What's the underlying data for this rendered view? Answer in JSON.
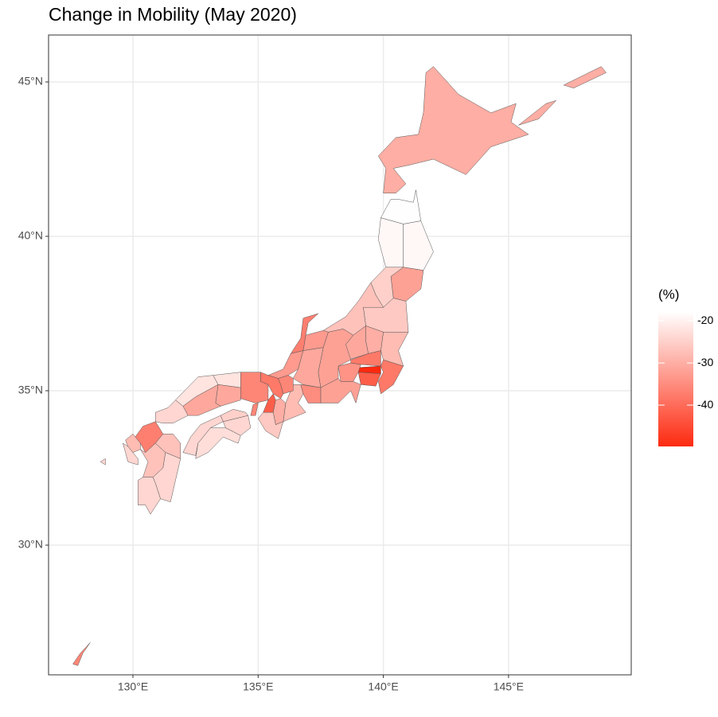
{
  "chart_data": {
    "type": "choropleth",
    "title": "Change in Mobility (May 2020)",
    "legend_title": "(%)",
    "xlim": [
      126.63,
      149.9
    ],
    "ylim": [
      25.8,
      46.52
    ],
    "xticks": [
      {
        "value": 130,
        "label": "130°E"
      },
      {
        "value": 135,
        "label": "135°E"
      },
      {
        "value": 140,
        "label": "140°E"
      },
      {
        "value": 145,
        "label": "145°E"
      }
    ],
    "yticks": [
      {
        "value": 30,
        "label": "30°N"
      },
      {
        "value": 35,
        "label": "35°N"
      },
      {
        "value": 40,
        "label": "40°N"
      },
      {
        "value": 45,
        "label": "45°N"
      }
    ],
    "grid": true,
    "clim": [
      -49.8,
      -17.9
    ],
    "cticks": [
      -20,
      -30,
      -40
    ],
    "low_color": "#fd2a10",
    "high_color": "#ffffff",
    "border_color": "#555555",
    "values": [
      -30,
      -18,
      -19,
      -19,
      -32,
      -25,
      -26,
      -27,
      -28,
      -30,
      -31,
      -38,
      -50,
      -42,
      -38,
      -34,
      -32,
      -32,
      -33,
      -37,
      -33,
      -31,
      -35,
      -28,
      -36,
      -38,
      -42,
      -36,
      -30,
      -26,
      -22,
      -22,
      -31,
      -31,
      -24,
      -37,
      -28,
      -24,
      -27,
      -27,
      -24,
      -24,
      -24,
      -25,
      -24,
      -23,
      -36
    ]
  }
}
